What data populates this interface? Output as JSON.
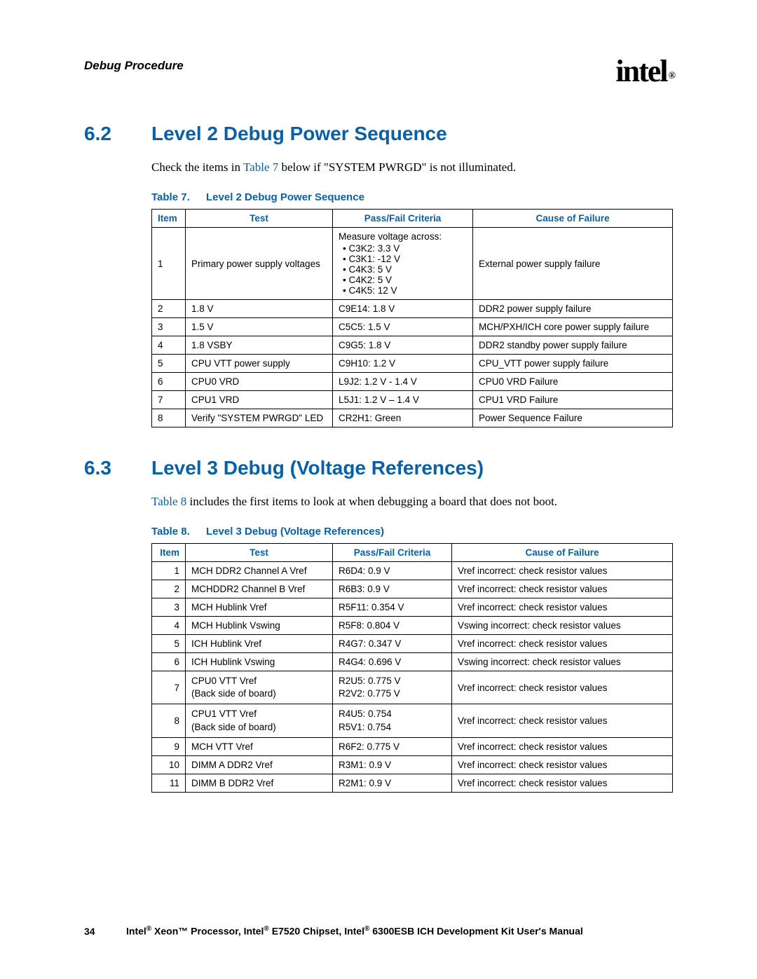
{
  "header": {
    "title": "Debug Procedure",
    "logo_text": "intel",
    "logo_r": "®"
  },
  "section62": {
    "num": "6.2",
    "title": "Level 2 Debug Power Sequence",
    "para_pre": "Check the items in ",
    "para_link": "Table 7",
    "para_post": " below if \"SYSTEM PWRGD\" is not illuminated.",
    "table_num": "Table 7.",
    "table_title": "Level 2 Debug Power Sequence",
    "headers": [
      "Item",
      "Test",
      "Pass/Fail Criteria",
      "Cause of Failure"
    ],
    "row1": {
      "item": "1",
      "test": "Primary power supply voltages",
      "criteria_lead": "Measure voltage across:",
      "criteria": [
        "C3K2:  3.3 V",
        "C3K1: -12 V",
        "C4K3: 5 V",
        "C4K2: 5 V",
        "C4K5: 12 V"
      ],
      "cause": "External power supply failure"
    },
    "rows": [
      {
        "item": "2",
        "test": "1.8 V",
        "criteria": "C9E14: 1.8 V",
        "cause": "DDR2 power supply failure"
      },
      {
        "item": "3",
        "test": "1.5 V",
        "criteria": "C5C5: 1.5 V",
        "cause": "MCH/PXH/ICH core power supply failure"
      },
      {
        "item": "4",
        "test": "1.8 VSBY",
        "criteria": "C9G5: 1.8 V",
        "cause": "DDR2 standby power supply failure"
      },
      {
        "item": "5",
        "test": "CPU VTT power supply",
        "criteria": "C9H10: 1.2 V",
        "cause": "CPU_VTT power supply failure"
      },
      {
        "item": "6",
        "test": "CPU0 VRD",
        "criteria": "L9J2: 1.2 V - 1.4 V",
        "cause": "CPU0 VRD Failure"
      },
      {
        "item": "7",
        "test": "CPU1 VRD",
        "criteria": "L5J1: 1.2 V – 1.4 V",
        "cause": "CPU1 VRD Failure"
      },
      {
        "item": "8",
        "test": "Verify \"SYSTEM PWRGD\" LED",
        "criteria": "CR2H1: Green",
        "cause": "Power Sequence Failure"
      }
    ]
  },
  "section63": {
    "num": "6.3",
    "title": "Level 3 Debug (Voltage References)",
    "para_link": "Table 8",
    "para_post": " includes the first items to look at when debugging a board that does not boot.",
    "table_num": "Table 8.",
    "table_title": "Level 3 Debug (Voltage References)",
    "headers": [
      "Item",
      "Test",
      "Pass/Fail Criteria",
      "Cause of Failure"
    ],
    "rows": [
      {
        "item": "1",
        "test": "MCH DDR2 Channel A Vref",
        "criteria": "R6D4: 0.9 V",
        "cause": "Vref incorrect: check resistor values"
      },
      {
        "item": "2",
        "test": "MCHDDR2 Channel B Vref",
        "criteria": "R6B3: 0.9 V",
        "cause": "Vref incorrect: check resistor values"
      },
      {
        "item": "3",
        "test": "MCH Hublink Vref",
        "criteria": "R5F11: 0.354 V",
        "cause": "Vref incorrect: check resistor values"
      },
      {
        "item": "4",
        "test": "MCH Hublink Vswing",
        "criteria": "R5F8: 0.804 V",
        "cause": "Vswing incorrect: check resistor values"
      },
      {
        "item": "5",
        "test": "ICH Hublink Vref",
        "criteria": "R4G7: 0.347 V",
        "cause": "Vref incorrect: check resistor values"
      },
      {
        "item": "6",
        "test": "ICH Hublink Vswing",
        "criteria": "R4G4: 0.696 V",
        "cause": "Vswing incorrect: check resistor values"
      }
    ],
    "row7": {
      "item": "7",
      "test1": "CPU0 VTT Vref",
      "test2": "(Back side of board)",
      "crit1": "R2U5: 0.775 V",
      "crit2": "R2V2: 0.775 V",
      "cause": "Vref incorrect: check resistor values"
    },
    "row8": {
      "item": "8",
      "test1": "CPU1 VTT Vref",
      "test2": "(Back side of board)",
      "crit1": "R4U5: 0.754",
      "crit2": "R5V1: 0.754",
      "cause": "Vref incorrect: check resistor values"
    },
    "rows2": [
      {
        "item": "9",
        "test": "MCH VTT Vref",
        "criteria": "R6F2:  0.775 V",
        "cause": "Vref incorrect: check resistor values"
      },
      {
        "item": "10",
        "test": "DIMM A DDR2 Vref",
        "criteria": "R3M1: 0.9 V",
        "cause": "Vref incorrect: check resistor values"
      },
      {
        "item": "11",
        "test": "DIMM B DDR2 Vref",
        "criteria": "R2M1: 0.9 V",
        "cause": "Vref incorrect: check resistor values"
      }
    ]
  },
  "footer": {
    "page": "34",
    "text_parts": [
      "Intel",
      "®",
      " Xeon™ Processor, Intel",
      "®",
      " E7520 Chipset, Intel",
      "®",
      " 6300ESB ICH Development Kit User's Manual"
    ]
  }
}
